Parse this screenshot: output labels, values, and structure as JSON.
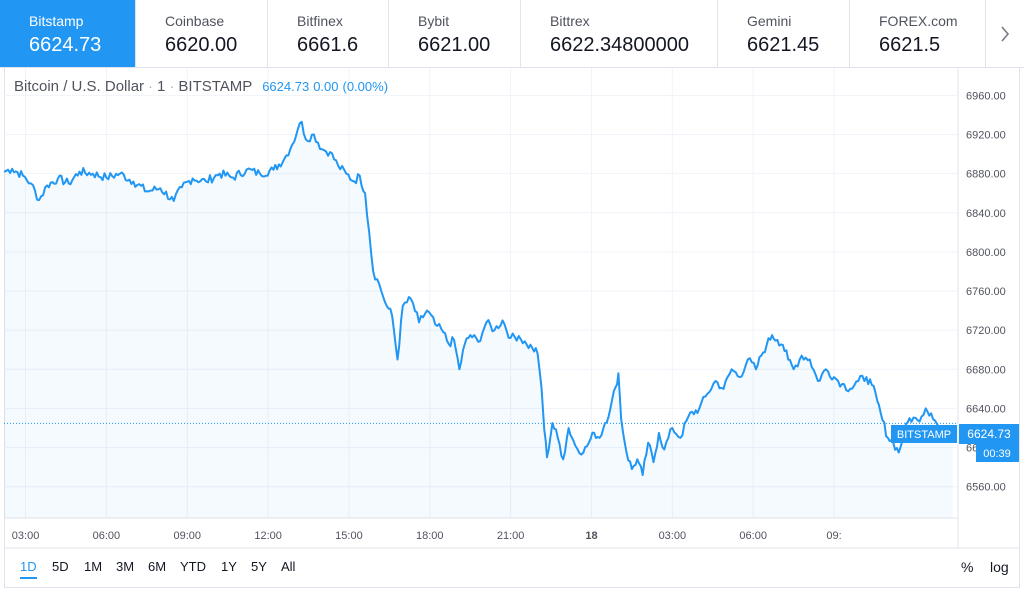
{
  "ticker": {
    "items": [
      {
        "name": "Bitstamp",
        "price": "6624.73"
      },
      {
        "name": "Coinbase",
        "price": "6620.00"
      },
      {
        "name": "Bitfinex",
        "price": "6661.6"
      },
      {
        "name": "Bybit",
        "price": "6621.00"
      },
      {
        "name": "Bittrex",
        "price": "6622.34800000"
      },
      {
        "name": "Gemini",
        "price": "6621.45"
      },
      {
        "name": "FOREX.com",
        "price": "6621.5"
      }
    ],
    "next_icon": "chevron-right-icon"
  },
  "legend": {
    "title": "Bitcoin / U.S. Dollar",
    "interval": "1",
    "exchange": "BITSTAMP",
    "last": "6624.73",
    "change": "0.00",
    "change_pct": "(0.00%)"
  },
  "price_label": {
    "name": "BITSTAMP",
    "value": "6624.73",
    "countdown": "00:39"
  },
  "timeframes": [
    "1D",
    "5D",
    "1M",
    "3M",
    "6M",
    "YTD",
    "1Y",
    "5Y",
    "All"
  ],
  "scale_buttons": {
    "percent": "%",
    "log": "log"
  },
  "colors": {
    "line": "#2196f3",
    "accent": "#2196f3",
    "grid": "#f0f3fa"
  },
  "chart_data": {
    "type": "area",
    "series": [
      {
        "points": [
          [
            0,
            6882
          ],
          [
            0.3,
            6885
          ],
          [
            0.7,
            6878
          ],
          [
            1.0,
            6870
          ],
          [
            1.3,
            6853
          ],
          [
            1.6,
            6868
          ],
          [
            2.0,
            6875
          ],
          [
            2.4,
            6870
          ],
          [
            2.8,
            6882
          ],
          [
            3.3,
            6880
          ],
          [
            3.8,
            6876
          ],
          [
            4.3,
            6880
          ],
          [
            4.8,
            6872
          ],
          [
            5.3,
            6862
          ],
          [
            5.8,
            6865
          ],
          [
            6.3,
            6852
          ],
          [
            6.6,
            6866
          ],
          [
            7.0,
            6875
          ],
          [
            7.5,
            6872
          ],
          [
            8.0,
            6880
          ],
          [
            8.5,
            6876
          ],
          [
            9.0,
            6884
          ],
          [
            9.5,
            6880
          ],
          [
            10.0,
            6884
          ],
          [
            10.4,
            6895
          ],
          [
            10.7,
            6910
          ],
          [
            10.9,
            6925
          ],
          [
            11.05,
            6933
          ],
          [
            11.2,
            6915
          ],
          [
            11.5,
            6920
          ],
          [
            11.8,
            6905
          ],
          [
            12.1,
            6902
          ],
          [
            12.4,
            6888
          ],
          [
            12.7,
            6880
          ],
          [
            13.0,
            6872
          ],
          [
            13.2,
            6878
          ],
          [
            13.4,
            6860
          ],
          [
            13.55,
            6820
          ],
          [
            13.7,
            6780
          ],
          [
            13.85,
            6772
          ],
          [
            14.0,
            6760
          ],
          [
            14.2,
            6745
          ],
          [
            14.4,
            6735
          ],
          [
            14.6,
            6690
          ],
          [
            14.8,
            6745
          ],
          [
            15.1,
            6752
          ],
          [
            15.4,
            6728
          ],
          [
            15.7,
            6740
          ],
          [
            16.0,
            6726
          ],
          [
            16.3,
            6718
          ],
          [
            16.5,
            6706
          ],
          [
            16.7,
            6710
          ],
          [
            16.9,
            6680
          ],
          [
            17.1,
            6706
          ],
          [
            17.3,
            6715
          ],
          [
            17.6,
            6708
          ],
          [
            17.9,
            6728
          ],
          [
            18.2,
            6720
          ],
          [
            18.5,
            6730
          ],
          [
            18.8,
            6712
          ],
          [
            19.1,
            6714
          ],
          [
            19.4,
            6705
          ],
          [
            19.6,
            6702
          ],
          [
            19.8,
            6696
          ],
          [
            19.95,
            6660
          ],
          [
            20.05,
            6618
          ],
          [
            20.15,
            6590
          ],
          [
            20.35,
            6625
          ],
          [
            20.55,
            6610
          ],
          [
            20.75,
            6588
          ],
          [
            20.95,
            6620
          ],
          [
            21.2,
            6602
          ],
          [
            21.5,
            6595
          ],
          [
            21.7,
            6605
          ],
          [
            21.9,
            6615
          ],
          [
            22.1,
            6610
          ],
          [
            22.3,
            6625
          ],
          [
            22.5,
            6640
          ],
          [
            22.7,
            6662
          ],
          [
            22.8,
            6676
          ],
          [
            22.9,
            6630
          ],
          [
            23.1,
            6595
          ],
          [
            23.3,
            6578
          ],
          [
            23.5,
            6588
          ],
          [
            23.7,
            6572
          ],
          [
            23.9,
            6605
          ],
          [
            24.1,
            6585
          ],
          [
            24.3,
            6615
          ],
          [
            24.5,
            6598
          ],
          [
            24.8,
            6620
          ],
          [
            25.1,
            6610
          ],
          [
            25.4,
            6632
          ],
          [
            25.8,
            6640
          ],
          [
            26.1,
            6655
          ],
          [
            26.4,
            6668
          ],
          [
            26.7,
            6660
          ],
          [
            27.0,
            6680
          ],
          [
            27.3,
            6672
          ],
          [
            27.6,
            6690
          ],
          [
            27.9,
            6680
          ],
          [
            28.1,
            6694
          ],
          [
            28.3,
            6705
          ],
          [
            28.5,
            6715
          ],
          [
            28.7,
            6710
          ],
          [
            28.9,
            6705
          ],
          [
            29.1,
            6690
          ],
          [
            29.3,
            6680
          ],
          [
            29.6,
            6694
          ],
          [
            29.9,
            6690
          ],
          [
            30.2,
            6668
          ],
          [
            30.5,
            6680
          ],
          [
            30.8,
            6672
          ],
          [
            31.1,
            6665
          ],
          [
            31.4,
            6660
          ],
          [
            31.7,
            6668
          ],
          [
            32.0,
            6672
          ],
          [
            32.2,
            6664
          ],
          [
            32.4,
            6648
          ],
          [
            32.6,
            6628
          ],
          [
            32.8,
            6610
          ],
          [
            33.0,
            6605
          ],
          [
            33.2,
            6595
          ],
          [
            33.4,
            6615
          ],
          [
            33.6,
            6630
          ],
          [
            33.9,
            6628
          ],
          [
            34.2,
            6640
          ],
          [
            34.4,
            6635
          ],
          [
            34.7,
            6620
          ],
          [
            35.0,
            6615
          ],
          [
            35.2,
            6620
          ]
        ]
      }
    ],
    "xlim": [
      0,
      35.4
    ],
    "ylim": [
      6528,
      6988
    ],
    "y_ticks": [
      6560,
      6600,
      6640,
      6680,
      6720,
      6760,
      6800,
      6840,
      6880,
      6920,
      6960
    ],
    "y_tick_labels": [
      "6560.00",
      "6600.00",
      "6640.00",
      "6680.00",
      "6720.00",
      "6760.00",
      "6800.00",
      "6840.00",
      "6880.00",
      "6920.00",
      "6960.00"
    ],
    "x_ticks": [
      {
        "x": 0.8,
        "label": "03:00",
        "bold": false
      },
      {
        "x": 3.8,
        "label": "06:00",
        "bold": false
      },
      {
        "x": 6.8,
        "label": "09:00",
        "bold": false
      },
      {
        "x": 9.8,
        "label": "12:00",
        "bold": false
      },
      {
        "x": 12.8,
        "label": "15:00",
        "bold": false
      },
      {
        "x": 15.8,
        "label": "18:00",
        "bold": false
      },
      {
        "x": 18.8,
        "label": "21:00",
        "bold": false
      },
      {
        "x": 21.8,
        "label": "18",
        "bold": true
      },
      {
        "x": 24.8,
        "label": "03:00",
        "bold": false
      },
      {
        "x": 27.8,
        "label": "06:00",
        "bold": false
      },
      {
        "x": 30.8,
        "label": "09:",
        "bold": false
      }
    ],
    "last_value": 6624.73,
    "grid": true,
    "legend_placement": "top-left"
  }
}
